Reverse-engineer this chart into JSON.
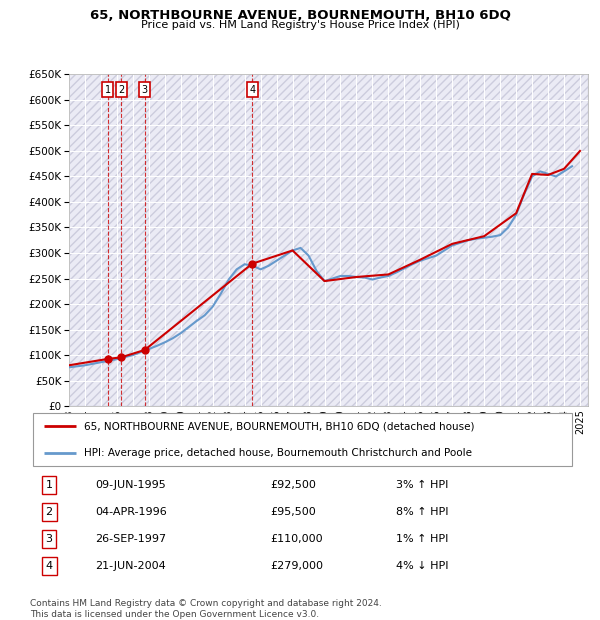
{
  "title": "65, NORTHBOURNE AVENUE, BOURNEMOUTH, BH10 6DQ",
  "subtitle": "Price paid vs. HM Land Registry's House Price Index (HPI)",
  "ytick_values": [
    0,
    50000,
    100000,
    150000,
    200000,
    250000,
    300000,
    350000,
    400000,
    450000,
    500000,
    550000,
    600000,
    650000
  ],
  "xmin": 1993.0,
  "xmax": 2025.5,
  "ymin": 0,
  "ymax": 650000,
  "sale_dates": [
    1995.44,
    1996.26,
    1997.74,
    2004.47
  ],
  "sale_prices": [
    92500,
    95500,
    110000,
    279000
  ],
  "sale_labels": [
    "1",
    "2",
    "3",
    "4"
  ],
  "legend_property": "65, NORTHBOURNE AVENUE, BOURNEMOUTH, BH10 6DQ (detached house)",
  "legend_hpi": "HPI: Average price, detached house, Bournemouth Christchurch and Poole",
  "table_rows": [
    {
      "num": "1",
      "date": "09-JUN-1995",
      "price": "£92,500",
      "change": "3% ↑ HPI"
    },
    {
      "num": "2",
      "date": "04-APR-1996",
      "price": "£95,500",
      "change": "8% ↑ HPI"
    },
    {
      "num": "3",
      "date": "26-SEP-1997",
      "price": "£110,000",
      "change": "1% ↑ HPI"
    },
    {
      "num": "4",
      "date": "21-JUN-2004",
      "price": "£279,000",
      "change": "4% ↓ HPI"
    }
  ],
  "footer": "Contains HM Land Registry data © Crown copyright and database right 2024.\nThis data is licensed under the Open Government Licence v3.0.",
  "property_color": "#cc0000",
  "hpi_color": "#6699cc",
  "hpi_data_x": [
    1993.0,
    1993.5,
    1994.0,
    1994.5,
    1995.0,
    1995.5,
    1996.0,
    1996.5,
    1997.0,
    1997.5,
    1998.0,
    1998.5,
    1999.0,
    1999.5,
    2000.0,
    2000.5,
    2001.0,
    2001.5,
    2002.0,
    2002.5,
    2003.0,
    2003.5,
    2004.0,
    2004.5,
    2005.0,
    2005.5,
    2006.0,
    2006.5,
    2007.0,
    2007.5,
    2008.0,
    2008.5,
    2009.0,
    2009.5,
    2010.0,
    2010.5,
    2011.0,
    2011.5,
    2012.0,
    2012.5,
    2013.0,
    2013.5,
    2014.0,
    2014.5,
    2015.0,
    2015.5,
    2016.0,
    2016.5,
    2017.0,
    2017.5,
    2018.0,
    2018.5,
    2019.0,
    2019.5,
    2020.0,
    2020.5,
    2021.0,
    2021.5,
    2022.0,
    2022.5,
    2023.0,
    2023.5,
    2024.0,
    2024.5
  ],
  "hpi_data_y": [
    76000,
    78000,
    80000,
    83000,
    86000,
    89000,
    92000,
    96000,
    100000,
    106000,
    112000,
    118000,
    125000,
    133000,
    143000,
    155000,
    167000,
    178000,
    195000,
    220000,
    248000,
    268000,
    278000,
    275000,
    268000,
    275000,
    285000,
    295000,
    305000,
    310000,
    295000,
    265000,
    245000,
    250000,
    255000,
    255000,
    253000,
    252000,
    248000,
    252000,
    255000,
    262000,
    270000,
    278000,
    285000,
    290000,
    295000,
    305000,
    315000,
    320000,
    325000,
    328000,
    330000,
    332000,
    335000,
    350000,
    375000,
    415000,
    450000,
    460000,
    455000,
    450000,
    460000,
    470000
  ],
  "property_data_x": [
    1993.0,
    1995.44,
    1996.26,
    1997.74,
    2004.47,
    2007.0,
    2009.0,
    2011.0,
    2013.0,
    2015.0,
    2017.0,
    2019.0,
    2021.0,
    2022.0,
    2023.0,
    2024.0,
    2025.0
  ],
  "property_data_y": [
    80000,
    92500,
    95500,
    110000,
    279000,
    305000,
    245000,
    253000,
    258000,
    287000,
    318000,
    333000,
    378000,
    455000,
    453000,
    465000,
    500000
  ]
}
